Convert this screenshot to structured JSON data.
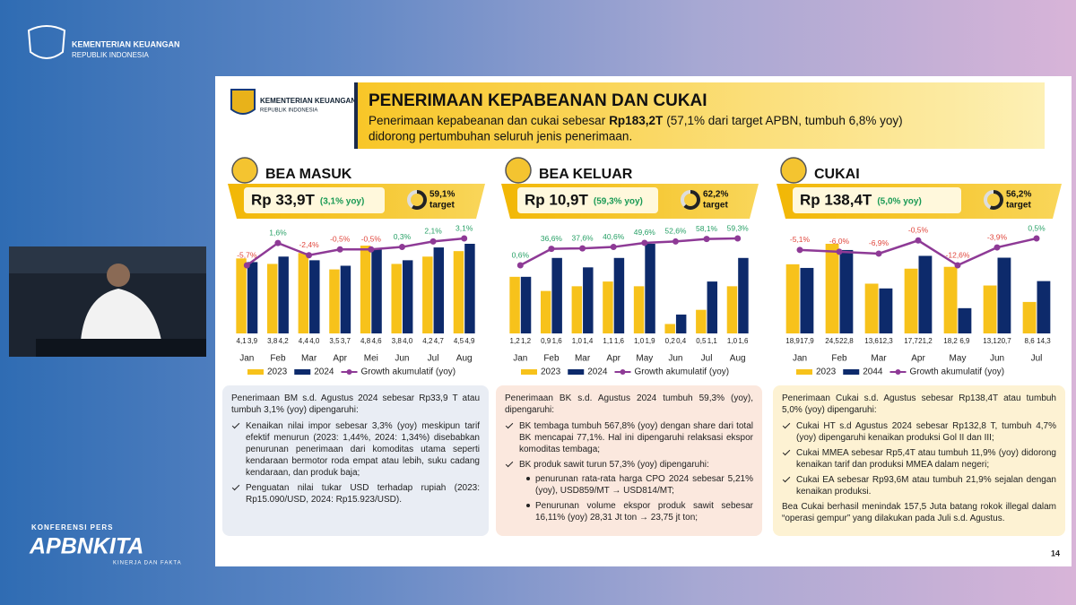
{
  "header": {
    "ministry": "KEMENTERIAN KEUANGAN",
    "country": "REPUBLIK INDONESIA"
  },
  "event": {
    "label": "KONFERENSI PERS",
    "brand": "APBNKITA",
    "tagline": "KINERJA DAN FAKTA"
  },
  "slide": {
    "logo_ministry": "KEMENTERIAN KEUANGAN",
    "logo_country": "REPUBLIK INDONESIA",
    "title": "PENERIMAAN KEPABEANAN DAN CUKAI",
    "subtitle_pre": "Penerimaan kepabeanan dan cukai sebesar",
    "subtitle_amount": "Rp183,2T",
    "subtitle_post": "(57,1% dari target APBN, tumbuh 6,8% yoy)",
    "subtitle_line2": "didorong pertumbuhan seluruh jenis penerimaan.",
    "page": "14"
  },
  "chart_data": [
    {
      "type": "bar",
      "title": "BEA MASUK",
      "amount": "Rp 33,9T",
      "growth": "(3,1% yoy)",
      "target": 59.1,
      "target_label": "59,1%",
      "target_text": "target",
      "categories": [
        "Jan",
        "Feb",
        "Mar",
        "Apr",
        "Mei",
        "Jun",
        "Jul",
        "Aug"
      ],
      "series": [
        {
          "name": "2023",
          "color": "#f7c21b",
          "values": [
            4.1,
            3.8,
            4.4,
            3.5,
            4.8,
            3.8,
            4.2,
            4.5
          ],
          "value_labels": [
            "4,1",
            "3,8",
            "4,4",
            "3,5",
            "4,8",
            "3,8",
            "4,2",
            "4,5"
          ]
        },
        {
          "name": "2024",
          "color": "#0d2a6b",
          "values": [
            3.9,
            4.2,
            4.0,
            3.7,
            4.6,
            4.0,
            4.7,
            4.9
          ],
          "value_labels": [
            "3,9",
            "4,2",
            "4,0",
            "3,7",
            "4,6",
            "4,0",
            "4,7",
            "4,9"
          ]
        },
        {
          "name": "Growth akumulatif (yoy)",
          "type": "line",
          "color": "#8e3a96",
          "values": [
            -5.7,
            1.6,
            -2.4,
            -0.5,
            -0.5,
            0.3,
            2.1,
            3.1
          ],
          "value_labels": [
            "-5,7%",
            "1,6%",
            "-2,4%",
            "-0,5%",
            "-0,5%",
            "0,3%",
            "2,1%",
            "3,1%"
          ]
        }
      ]
    },
    {
      "type": "bar",
      "title": "BEA KELUAR",
      "amount": "Rp 10,9T",
      "growth": "(59,3% yoy)",
      "target": 62.2,
      "target_label": "62,2%",
      "target_text": "target",
      "categories": [
        "Jan",
        "Feb",
        "Mar",
        "Apr",
        "May",
        "Jun",
        "Jul",
        "Aug"
      ],
      "series": [
        {
          "name": "2023",
          "color": "#f7c21b",
          "values": [
            1.2,
            0.9,
            1.0,
            1.1,
            1.0,
            0.2,
            0.5,
            1.0
          ],
          "value_labels": [
            "1,2",
            "0,9",
            "1,0",
            "1,1",
            "1,0",
            "0,2",
            "0,5",
            "1,0"
          ]
        },
        {
          "name": "2024",
          "color": "#0d2a6b",
          "values": [
            1.2,
            1.6,
            1.4,
            1.6,
            1.9,
            0.4,
            1.1,
            1.6
          ],
          "value_labels": [
            "1,2",
            "1,6",
            "1,4",
            "1,6",
            "1,9",
            "0,4",
            "1,1",
            "1,6"
          ]
        },
        {
          "name": "Growth akumulatif (yoy)",
          "type": "line",
          "color": "#8e3a96",
          "values": [
            0.6,
            36.6,
            37.6,
            40.6,
            49.6,
            52.6,
            58.1,
            59.3
          ],
          "value_labels": [
            "0,6%",
            "36,6%",
            "37,6%",
            "40,6%",
            "49,6%",
            "52,6%",
            "58,1%",
            "59,3%"
          ]
        }
      ]
    },
    {
      "type": "bar",
      "title": "CUKAI",
      "amount": "Rp 138,4T",
      "growth": "(5,0% yoy)",
      "target": 56.2,
      "target_label": "56,2%",
      "target_text": "target",
      "categories": [
        "Jan",
        "Feb",
        "Mar",
        "Apr",
        "May",
        "Jun",
        "Jul"
      ],
      "series": [
        {
          "name": "2023",
          "color": "#f7c21b",
          "values": [
            18.9,
            24.5,
            13.6,
            17.7,
            18.2,
            13.1,
            8.6
          ],
          "value_labels": [
            "18,9",
            "24,5",
            "13,6",
            "17,7",
            "18,2",
            "13,1",
            "8,6"
          ]
        },
        {
          "name": "2044",
          "color": "#0d2a6b",
          "values": [
            17.9,
            22.8,
            12.3,
            21.2,
            6.9,
            20.7,
            14.3
          ],
          "value_labels": [
            "17,9",
            "22,8",
            "12,3",
            "21,2",
            "6,9",
            "20,7",
            "14,3"
          ]
        },
        {
          "name": "Growth akumulatif (yoy)",
          "type": "line",
          "color": "#8e3a96",
          "values": [
            -5.1,
            -6.0,
            -6.9,
            -0.5,
            -12.6,
            -3.9,
            0.5
          ],
          "value_labels": [
            "-5,1%",
            "-6,0%",
            "-6,9%",
            "-0,5%",
            "-12,6%",
            "-3,9%",
            "0,5%"
          ]
        }
      ]
    }
  ],
  "notes": [
    {
      "color": "#e9edf4",
      "intro": "Penerimaan BM s.d. Agustus 2024 sebesar Rp33,9 T atau tumbuh 3,1% (yoy) dipengaruhi:",
      "bullets": [
        {
          "text": "Kenaikan nilai impor sebesar 3,3% (yoy) meskipun tarif efektif menurun (2023: 1,44%, 2024: 1,34%) disebabkan penurunan penerimaan dari komoditas utama seperti kendaraan bermotor roda empat atau lebih, suku cadang kendaraan, dan produk baja;"
        },
        {
          "text": "Penguatan nilai tukar USD terhadap rupiah (2023: Rp15.090/USD, 2024: Rp15.923/USD)."
        }
      ]
    },
    {
      "color": "#fbe8de",
      "intro": "Penerimaan BK s.d. Agustus 2024 tumbuh 59,3% (yoy), dipengaruhi:",
      "bullets": [
        {
          "text": "BK tembaga tumbuh 567,8% (yoy) dengan share dari total BK mencapai 77,1%. Hal ini dipengaruhi relaksasi ekspor komoditas tembaga;"
        },
        {
          "text": "BK produk sawit turun 57,3% (yoy) dipengaruhi:",
          "sub": [
            "penurunan rata-rata harga CPO 2024 sebesar 5,21% (yoy), USD859/MT → USD814/MT;",
            "Penurunan volume ekspor produk sawit sebesar 16,11% (yoy) 28,31 Jt ton → 23,75 jt ton;"
          ]
        }
      ]
    },
    {
      "color": "#fdf2d3",
      "intro": "Penerimaan Cukai s.d. Agustus sebesar Rp138,4T atau tumbuh 5,0% (yoy) dipengaruhi:",
      "bullets": [
        {
          "text": "Cukai HT s.d Agustus 2024 sebesar Rp132,8 T, tumbuh 4,7% (yoy) dipengaruhi kenaikan produksi Gol II dan III;"
        },
        {
          "text": "Cukai MMEA sebesar Rp5,4T atau tumbuh 11,9% (yoy) didorong kenaikan tarif dan produksi MMEA dalam negeri;"
        },
        {
          "text": "Cukai EA sebesar Rp93,6M atau tumbuh 21,9% sejalan dengan kenaikan produksi."
        }
      ],
      "footer": "Bea Cukai berhasil menindak 157,5 Juta batang rokok illegal dalam “operasi gempur” yang dilakukan pada Juli s.d. Agustus."
    }
  ]
}
